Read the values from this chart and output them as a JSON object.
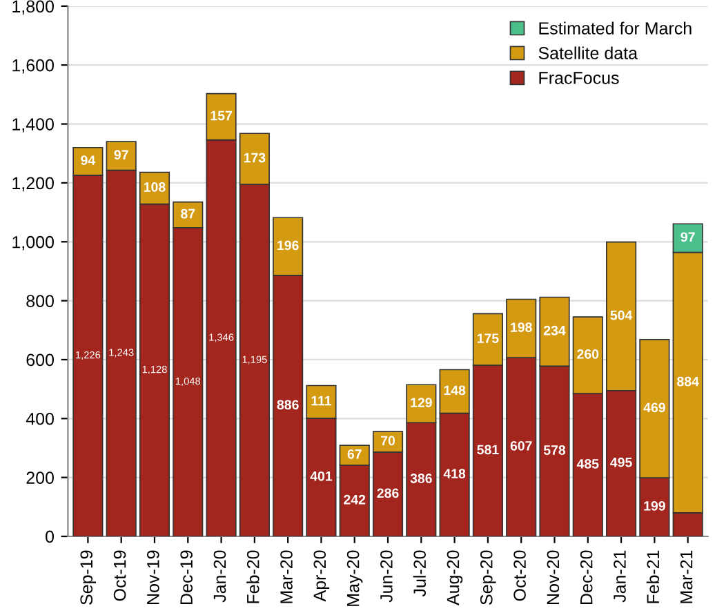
{
  "chart_data": {
    "type": "bar",
    "stacked": true,
    "categories": [
      "Sep-19",
      "Oct-19",
      "Nov-19",
      "Dec-19",
      "Jan-20",
      "Feb-20",
      "Mar-20",
      "Apr-20",
      "May-20",
      "Jun-20",
      "Jul-20",
      "Aug-20",
      "Sep-20",
      "Oct-20",
      "Nov-20",
      "Dec-20",
      "Jan-21",
      "Feb-21",
      "Mar-21"
    ],
    "series": [
      {
        "name": "FracFocus",
        "color": "#a3261e",
        "values": [
          1226,
          1243,
          1128,
          1048,
          1346,
          1195,
          886,
          401,
          242,
          286,
          386,
          418,
          581,
          607,
          578,
          485,
          495,
          199,
          80
        ],
        "value_labels": [
          "1,226",
          "1,243",
          "1,128",
          "1,048",
          "1,346",
          "1,195",
          "886",
          "401",
          "242",
          "286",
          "386",
          "418",
          "581",
          "607",
          "578",
          "485",
          "495",
          "199",
          null
        ]
      },
      {
        "name": "Satellite data",
        "color": "#d49a12",
        "values": [
          94,
          97,
          108,
          87,
          157,
          173,
          196,
          111,
          67,
          70,
          129,
          148,
          175,
          198,
          234,
          260,
          504,
          469,
          884
        ],
        "value_labels": [
          "94",
          "97",
          "108",
          "87",
          "157",
          "173",
          "196",
          "111",
          "67",
          "70",
          "129",
          "148",
          "175",
          "198",
          "234",
          "260",
          "504",
          "469",
          "884"
        ]
      },
      {
        "name": "Estimated for March",
        "color": "#4dbf8a",
        "values": [
          null,
          null,
          null,
          null,
          null,
          null,
          null,
          null,
          null,
          null,
          null,
          null,
          null,
          null,
          null,
          null,
          null,
          null,
          97
        ],
        "value_labels": [
          null,
          null,
          null,
          null,
          null,
          null,
          null,
          null,
          null,
          null,
          null,
          null,
          null,
          null,
          null,
          null,
          null,
          null,
          "97"
        ]
      }
    ],
    "ylim": [
      0,
      1800
    ],
    "yticks": [
      {
        "value": 0,
        "label": "0"
      },
      {
        "value": 200,
        "label": "200"
      },
      {
        "value": 400,
        "label": "400"
      },
      {
        "value": 600,
        "label": "600"
      },
      {
        "value": 800,
        "label": "800"
      },
      {
        "value": 1000,
        "label": "1,000"
      },
      {
        "value": 1200,
        "label": "1,200"
      },
      {
        "value": 1400,
        "label": "1,400"
      },
      {
        "value": 1600,
        "label": "1,600"
      },
      {
        "value": 1800,
        "label": "1,800"
      }
    ],
    "grid": "y",
    "legend": "top right"
  }
}
